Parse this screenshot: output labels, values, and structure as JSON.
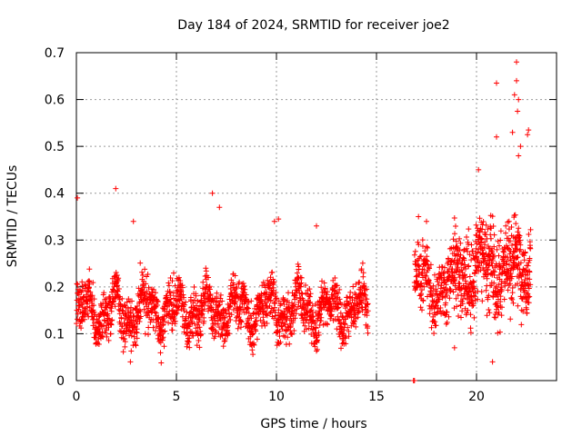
{
  "chart_data": {
    "type": "scatter",
    "title": "Day 184 of 2024, SRMTID for receiver joe2",
    "xlabel": "GPS time / hours",
    "ylabel": "SRMTID / TECUs",
    "xlim": [
      0,
      24
    ],
    "ylim": [
      0,
      0.7
    ],
    "x_ticks": [
      0,
      5,
      10,
      15,
      20
    ],
    "x_tick_labels": [
      "0",
      "5",
      "10",
      "15",
      "20"
    ],
    "y_ticks": [
      0,
      0.1,
      0.2,
      0.3,
      0.4,
      0.5,
      0.6,
      0.7
    ],
    "y_tick_labels": [
      "0",
      "0.1",
      "0.2",
      "0.3",
      "0.4",
      "0.5",
      "0.6",
      "0.7"
    ],
    "grid": true,
    "marker": "plus",
    "series_color": "#ff0000",
    "segments": [
      {
        "x_start": 0.0,
        "x_end": 14.6,
        "step": 0.025,
        "base": 0.15,
        "spread": 0.05
      },
      {
        "x_start": 16.9,
        "x_end": 18.9,
        "step": 0.025,
        "base": 0.2,
        "spread": 0.06
      },
      {
        "x_start": 18.9,
        "x_end": 22.7,
        "step": 0.02,
        "base": 0.24,
        "spread": 0.09
      }
    ],
    "outliers": [
      {
        "x": 0.05,
        "y": 0.39
      },
      {
        "x": 1.97,
        "y": 0.41
      },
      {
        "x": 2.7,
        "y": 0.04
      },
      {
        "x": 2.85,
        "y": 0.34
      },
      {
        "x": 6.8,
        "y": 0.4
      },
      {
        "x": 7.15,
        "y": 0.37
      },
      {
        "x": 9.9,
        "y": 0.34
      },
      {
        "x": 10.1,
        "y": 0.345
      },
      {
        "x": 12.0,
        "y": 0.33
      },
      {
        "x": 17.1,
        "y": 0.35
      },
      {
        "x": 17.5,
        "y": 0.34
      },
      {
        "x": 18.9,
        "y": 0.07
      },
      {
        "x": 20.1,
        "y": 0.45
      },
      {
        "x": 20.8,
        "y": 0.04
      },
      {
        "x": 21.0,
        "y": 0.635
      },
      {
        "x": 21.0,
        "y": 0.52
      },
      {
        "x": 22.0,
        "y": 0.68
      },
      {
        "x": 22.0,
        "y": 0.64
      },
      {
        "x": 21.9,
        "y": 0.61
      },
      {
        "x": 22.1,
        "y": 0.6
      },
      {
        "x": 22.05,
        "y": 0.575
      },
      {
        "x": 22.6,
        "y": 0.535
      },
      {
        "x": 22.55,
        "y": 0.525
      },
      {
        "x": 21.8,
        "y": 0.53
      },
      {
        "x": 22.2,
        "y": 0.5
      },
      {
        "x": 22.1,
        "y": 0.48
      }
    ],
    "zero_points": [
      {
        "x": 16.85,
        "y": 0.0
      },
      {
        "x": 16.9,
        "y": 0.0
      }
    ]
  }
}
